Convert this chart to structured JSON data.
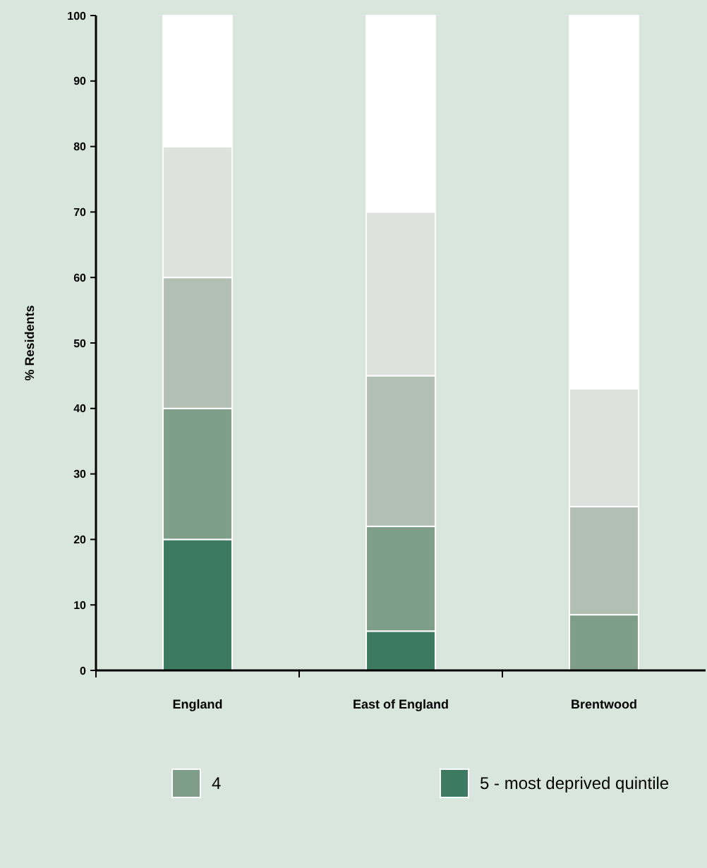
{
  "chart_data": {
    "type": "bar",
    "stacked": true,
    "ylabel": "% Residents",
    "categories": [
      "England",
      "East of England",
      "Brentwood"
    ],
    "ylim": [
      0,
      100
    ],
    "yticks": [
      0,
      10,
      20,
      30,
      40,
      50,
      60,
      70,
      80,
      90,
      100
    ],
    "legend": "bottom",
    "series": [
      {
        "name": "5 - most deprived quintile",
        "color": "#3d7a62",
        "values": [
          20,
          6,
          0
        ]
      },
      {
        "name": "4",
        "color": "#7f9e8a",
        "values": [
          20,
          16,
          8.5
        ]
      },
      {
        "color": "#b1c0b3",
        "values": [
          20,
          23,
          16.5
        ]
      },
      {
        "color": "#dde2dd",
        "values": [
          20,
          25,
          18
        ]
      },
      {
        "color": "#ffffff",
        "values": [
          20,
          30,
          57
        ]
      }
    ]
  }
}
